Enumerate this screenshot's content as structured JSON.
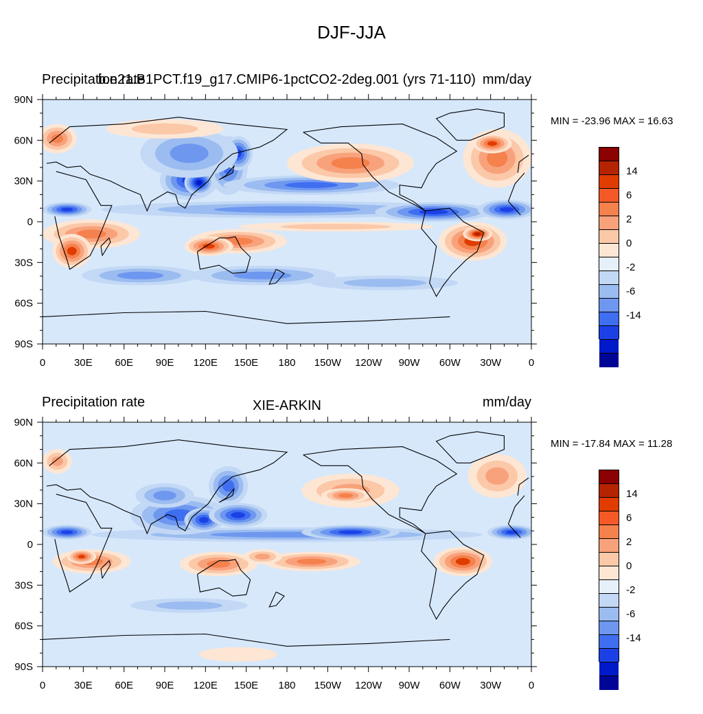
{
  "main_title": "DJF-JJA",
  "colors": {
    "ocean_neutral": "#d7e8fb",
    "colorbar": [
      "#8b0000",
      "#b52400",
      "#e03c00",
      "#f55a26",
      "#f5814d",
      "#f8a27c",
      "#fbc8a8",
      "#fde6d4",
      "#e6f0fb",
      "#c2d8f5",
      "#9bbcf0",
      "#6e97ef",
      "#3f6ef0",
      "#1b41e6",
      "#0019c9",
      "#000596"
    ],
    "red_scale": [
      "#fde6d4",
      "#fbc8a8",
      "#f8a27c",
      "#f5814d",
      "#e03c00",
      "#b52400"
    ],
    "blue_scale": [
      "#c2d8f5",
      "#9bbcf0",
      "#6e97ef",
      "#3f6ef0",
      "#1b41e6",
      "#0019c9"
    ]
  },
  "axes": {
    "lon_ticks": [
      "0",
      "30E",
      "60E",
      "90E",
      "120E",
      "150E",
      "180",
      "150W",
      "120W",
      "90W",
      "60W",
      "30W",
      "0"
    ],
    "lat_ticks": [
      "90N",
      "60N",
      "30N",
      "0",
      "30S",
      "60S",
      "90S"
    ]
  },
  "colorbar_labels": [
    "14",
    "6",
    "2",
    "0",
    "-2",
    "-6",
    "-14"
  ],
  "panels": [
    {
      "left_label": "Precipitation rate",
      "center_label": "b.e21.B1PCT.f19_g17.CMIP6-1pctCO2-2deg.001 (yrs 71-110)",
      "right_label": "mm/day",
      "minmax": "MIN = -23.96 MAX =  16.63"
    },
    {
      "left_label": "Precipitation rate",
      "center_label": "XIE-ARKIN",
      "right_label": "mm/day",
      "minmax": "MIN = -17.84 MAX =  11.28"
    }
  ]
}
